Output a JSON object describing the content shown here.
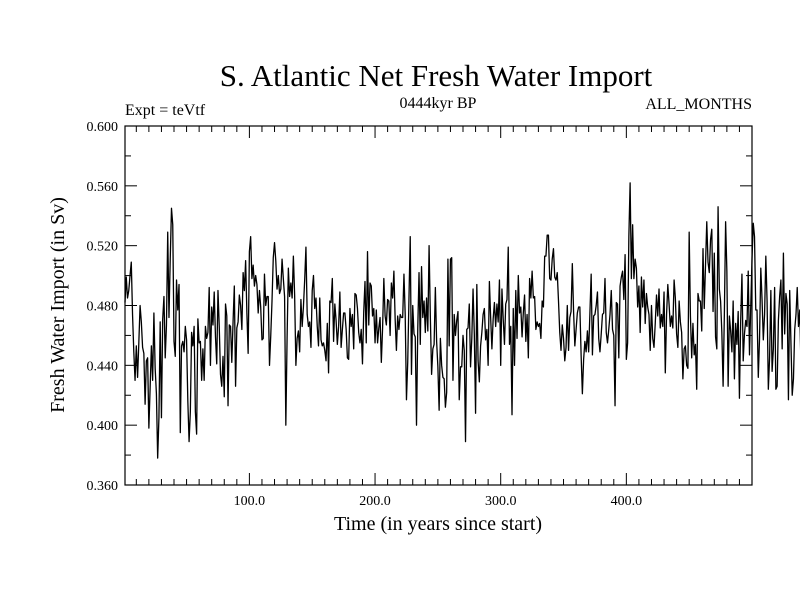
{
  "chart_data": {
    "type": "line",
    "title": "S. Atlantic Net Fresh Water Import",
    "subtitle": "0444kyr BP",
    "left_label": "Expt = teVtf",
    "right_label": "ALL_MONTHS",
    "xlabel": "Time (in years since start)",
    "ylabel": "Fresh Water Import (in Sv)",
    "xlim": [
      1,
      500
    ],
    "ylim": [
      0.36,
      0.6
    ],
    "grid": false,
    "x_ticks": [
      100,
      200,
      300,
      400
    ],
    "x_tick_labels": [
      "100.0",
      "200.0",
      "300.0",
      "400.0"
    ],
    "y_ticks": [
      0.36,
      0.4,
      0.44,
      0.48,
      0.52,
      0.56,
      0.6
    ],
    "y_tick_labels": [
      "0.360",
      "0.400",
      "0.440",
      "0.480",
      "0.520",
      "0.560",
      "0.600"
    ],
    "series": [
      {
        "x_start": 1,
        "x_step": 1,
        "values": [
          0.482,
          0.499,
          0.485,
          0.49,
          0.5,
          0.509,
          0.474,
          0.449,
          0.43,
          0.453,
          0.432,
          0.455,
          0.48,
          0.469,
          0.452,
          0.448,
          0.414,
          0.443,
          0.445,
          0.398,
          0.425,
          0.453,
          0.43,
          0.475,
          0.438,
          0.421,
          0.378,
          0.405,
          0.469,
          0.405,
          0.471,
          0.486,
          0.445,
          0.467,
          0.529,
          0.472,
          0.511,
          0.545,
          0.534,
          0.456,
          0.446,
          0.497,
          0.477,
          0.494,
          0.395,
          0.453,
          0.456,
          0.449,
          0.466,
          0.457,
          0.416,
          0.389,
          0.409,
          0.462,
          0.453,
          0.466,
          0.409,
          0.394,
          0.471,
          0.455,
          0.456,
          0.43,
          0.451,
          0.43,
          0.466,
          0.458,
          0.462,
          0.492,
          0.44,
          0.479,
          0.467,
          0.489,
          0.459,
          0.441,
          0.49,
          0.466,
          0.434,
          0.426,
          0.446,
          0.419,
          0.481,
          0.473,
          0.413,
          0.467,
          0.466,
          0.442,
          0.469,
          0.493,
          0.426,
          0.465,
          0.469,
          0.487,
          0.48,
          0.464,
          0.502,
          0.49,
          0.51,
          0.475,
          0.448,
          0.516,
          0.526,
          0.498,
          0.507,
          0.493,
          0.5,
          0.494,
          0.475,
          0.49,
          0.479,
          0.457,
          0.458,
          0.501,
          0.48,
          0.486,
          0.486,
          0.44,
          0.46,
          0.483,
          0.512,
          0.522,
          0.51,
          0.491,
          0.5,
          0.488,
          0.491,
          0.511,
          0.498,
          0.486,
          0.4,
          0.458,
          0.505,
          0.486,
          0.495,
          0.485,
          0.513,
          0.487,
          0.44,
          0.458,
          0.463,
          0.449,
          0.484,
          0.466,
          0.479,
          0.497,
          0.519,
          0.474,
          0.466,
          0.469,
          0.452,
          0.49,
          0.5,
          0.478,
          0.485,
          0.466,
          0.453,
          0.485,
          0.457,
          0.453,
          0.455,
          0.45,
          0.443,
          0.468,
          0.435,
          0.483,
          0.482,
          0.498,
          0.456,
          0.481,
          0.47,
          0.454,
          0.466,
          0.489,
          0.452,
          0.464,
          0.475,
          0.475,
          0.464,
          0.445,
          0.444,
          0.478,
          0.466,
          0.474,
          0.451,
          0.488,
          0.487,
          0.478,
          0.462,
          0.455,
          0.464,
          0.441,
          0.476,
          0.496,
          0.455,
          0.516,
          0.467,
          0.495,
          0.493,
          0.473,
          0.478,
          0.455,
          0.477,
          0.455,
          0.465,
          0.472,
          0.442,
          0.465,
          0.498,
          0.473,
          0.467,
          0.484,
          0.483,
          0.46,
          0.495,
          0.485,
          0.503,
          0.471,
          0.45,
          0.473,
          0.464,
          0.474,
          0.472,
          0.472,
          0.501,
          0.474,
          0.417,
          0.442,
          0.485,
          0.526,
          0.434,
          0.48,
          0.461,
          0.459,
          0.4,
          0.465,
          0.502,
          0.454,
          0.506,
          0.472,
          0.483,
          0.462,
          0.485,
          0.463,
          0.52,
          0.473,
          0.434,
          0.451,
          0.454,
          0.492,
          0.456,
          0.439,
          0.41,
          0.458,
          0.44,
          0.432,
          0.431,
          0.412,
          0.422,
          0.511,
          0.453,
          0.511,
          0.512,
          0.43,
          0.474,
          0.46,
          0.47,
          0.476,
          0.417,
          0.439,
          0.439,
          0.46,
          0.45,
          0.389,
          0.464,
          0.465,
          0.481,
          0.439,
          0.458,
          0.491,
          0.461,
          0.408,
          0.494,
          0.443,
          0.429,
          0.453,
          0.462,
          0.474,
          0.478,
          0.457,
          0.464,
          0.44,
          0.496,
          0.472,
          0.451,
          0.471,
          0.482,
          0.466,
          0.481,
          0.469,
          0.497,
          0.44,
          0.491,
          0.471,
          0.454,
          0.481,
          0.484,
          0.519,
          0.454,
          0.466,
          0.407,
          0.478,
          0.44,
          0.49,
          0.458,
          0.5,
          0.475,
          0.479,
          0.459,
          0.475,
          0.487,
          0.456,
          0.474,
          0.445,
          0.498,
          0.485,
          0.503,
          0.485,
          0.486,
          0.464,
          0.469,
          0.466,
          0.468,
          0.458,
          0.483,
          0.479,
          0.513,
          0.513,
          0.527,
          0.527,
          0.498,
          0.497,
          0.511,
          0.518,
          0.499,
          0.497,
          0.502,
          0.483,
          0.462,
          0.45,
          0.467,
          0.458,
          0.443,
          0.452,
          0.48,
          0.45,
          0.472,
          0.476,
          0.508,
          0.476,
          0.453,
          0.464,
          0.475,
          0.479,
          0.479,
          0.447,
          0.421,
          0.444,
          0.456,
          0.449,
          0.463,
          0.449,
          0.475,
          0.501,
          0.447,
          0.473,
          0.474,
          0.48,
          0.489,
          0.458,
          0.449,
          0.461,
          0.474,
          0.475,
          0.498,
          0.462,
          0.455,
          0.464,
          0.474,
          0.49,
          0.464,
          0.46,
          0.413,
          0.482,
          0.481,
          0.445,
          0.493,
          0.499,
          0.503,
          0.484,
          0.514,
          0.444,
          0.455,
          0.526,
          0.562,
          0.498,
          0.534,
          0.498,
          0.511,
          0.505,
          0.479,
          0.493,
          0.462,
          0.499,
          0.479,
          0.497,
          0.468,
          0.488,
          0.479,
          0.474,
          0.45,
          0.48,
          0.458,
          0.452,
          0.468,
          0.487,
          0.473,
          0.491,
          0.465,
          0.474,
          0.466,
          0.489,
          0.435,
          0.474,
          0.494,
          0.481,
          0.466,
          0.473,
          0.465,
          0.497,
          0.485,
          0.461,
          0.452,
          0.483,
          0.469,
          0.462,
          0.431,
          0.451,
          0.453,
          0.44,
          0.438,
          0.529,
          0.473,
          0.445,
          0.468,
          0.447,
          0.454,
          0.424,
          0.488,
          0.483,
          0.483,
          0.463,
          0.518,
          0.478,
          0.507,
          0.536,
          0.509,
          0.502,
          0.524,
          0.531,
          0.476,
          0.515,
          0.459,
          0.451,
          0.546,
          0.491,
          0.483,
          0.462,
          0.426,
          0.474,
          0.536,
          0.503,
          0.426,
          0.473,
          0.463,
          0.449,
          0.483,
          0.431,
          0.468,
          0.454,
          0.476,
          0.418,
          0.47,
          0.501,
          0.443,
          0.461,
          0.47,
          0.466,
          0.503,
          0.447,
          0.479,
          0.511,
          0.535,
          0.526,
          0.477,
          0.477,
          0.432,
          0.458,
          0.505,
          0.484,
          0.457,
          0.474,
          0.513,
          0.483,
          0.424,
          0.445,
          0.49,
          0.436,
          0.451,
          0.492,
          0.424,
          0.426,
          0.47,
          0.486,
          0.497,
          0.451,
          0.515,
          0.461,
          0.488,
          0.481,
          0.417,
          0.49,
          0.455,
          0.42,
          0.431,
          0.464,
          0.474,
          0.492,
          0.466,
          0.477,
          0.439
        ]
      }
    ]
  }
}
